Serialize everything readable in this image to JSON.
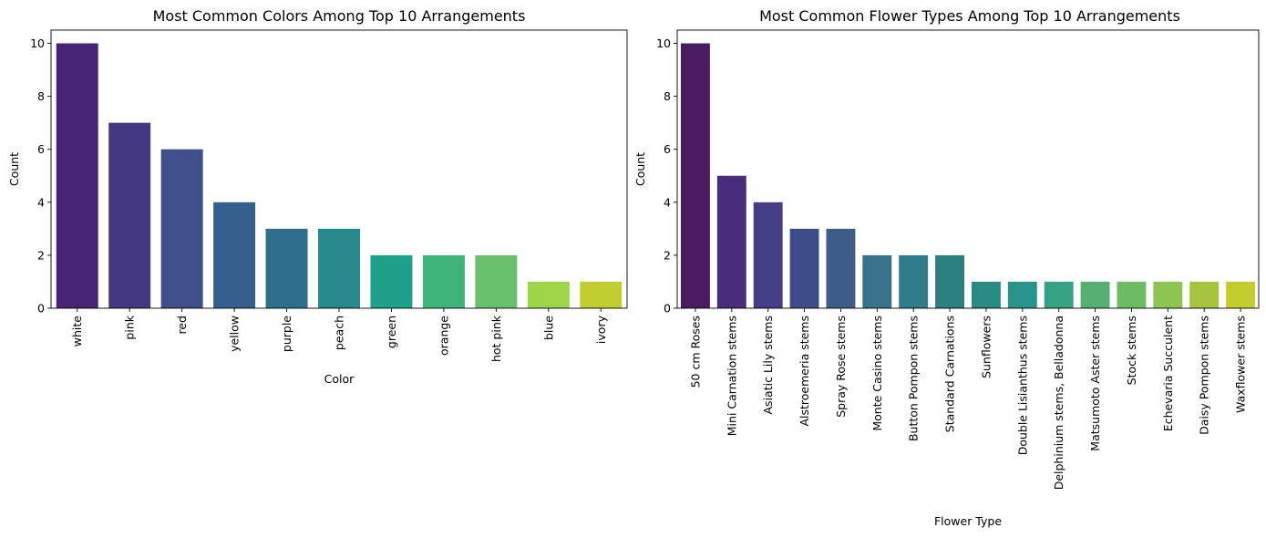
{
  "chart_data": [
    {
      "type": "bar",
      "title": "Most Common Colors Among Top 10 Arrangements",
      "xlabel": "Color",
      "ylabel": "Count",
      "ylim": [
        0,
        10.5
      ],
      "yticks": [
        "0",
        "2",
        "4",
        "6",
        "8",
        "10"
      ],
      "categories": [
        "white",
        "pink",
        "red",
        "yellow",
        "purple",
        "peach",
        "green",
        "orange",
        "hot pink",
        "blue",
        "ivory"
      ],
      "values": [
        10,
        7,
        6,
        4,
        3,
        3,
        2,
        2,
        2,
        1,
        1
      ],
      "colors": [
        "#482475",
        "#453883",
        "#3f4f8a",
        "#35608d",
        "#2e6f8e",
        "#268a8c",
        "#1fa088",
        "#3eb37a",
        "#69c16d",
        "#9cd545",
        "#bfcd2f"
      ],
      "grid": false
    },
    {
      "type": "bar",
      "title": "Most Common Flower Types Among Top 10 Arrangements",
      "xlabel": "Flower Type",
      "ylabel": "Count",
      "ylim": [
        0,
        10.5
      ],
      "yticks": [
        "0",
        "2",
        "4",
        "6",
        "8",
        "10"
      ],
      "categories": [
        "50 cm Roses",
        "Mini Carnation stems",
        "Asiatic Lily stems",
        "Alstroemeria stems",
        "Spray Rose stems",
        "Monte Casino stems",
        "Button Pompon stems",
        "Standard Carnations",
        "Sunflowers",
        "Double Lisianthus stems",
        "Delphinium stems, Belladonna",
        "Matsumoto Aster stems",
        "Stock stems",
        "Echevaria Succulent",
        "Daisy Pompon stems",
        "Waxflower stems"
      ],
      "values": [
        10,
        5,
        4,
        3,
        3,
        2,
        2,
        2,
        1,
        1,
        1,
        1,
        1,
        1,
        1,
        1
      ],
      "colors": [
        "#471b5f",
        "#472d7b",
        "#433e85",
        "#3c4d8a",
        "#3e5c88",
        "#39708a",
        "#2f7b8c",
        "#2b7f7e",
        "#278b84",
        "#26948a",
        "#35a382",
        "#56ae73",
        "#6cbc66",
        "#8cc54f",
        "#a5c43d",
        "#c0cd2a"
      ],
      "grid": false
    }
  ]
}
